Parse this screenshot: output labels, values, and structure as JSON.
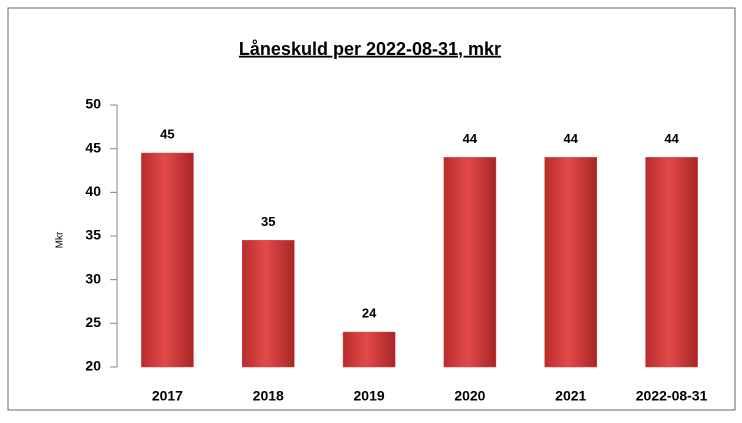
{
  "chart_data": {
    "type": "bar",
    "title": "Låneskuld per 2022-08-31, mkr",
    "y_label": "Mkr",
    "categories": [
      "2017",
      "2018",
      "2019",
      "2020",
      "2021",
      "2022-08-31"
    ],
    "values": [
      44.5,
      34.5,
      24,
      44,
      44,
      44
    ],
    "value_labels": [
      "45",
      "35",
      "24",
      "44",
      "44",
      "44"
    ],
    "color": "#d43b3b",
    "ylim": [
      20,
      50
    ],
    "yticks": [
      20,
      25,
      30,
      35,
      40,
      45,
      50
    ],
    "grid": false
  }
}
